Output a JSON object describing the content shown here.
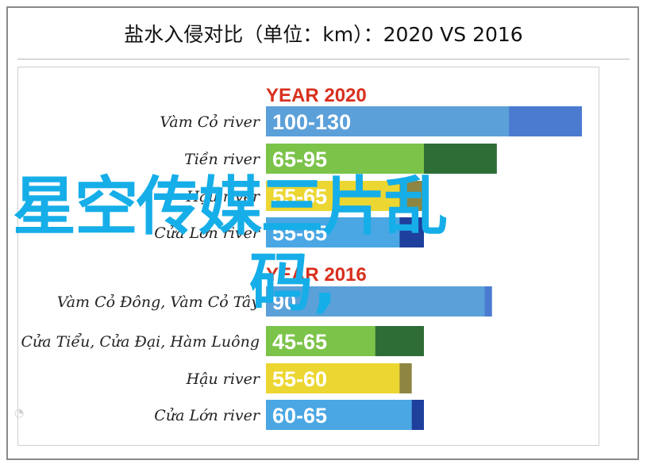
{
  "page_title": "盐水入侵对比（单位：km）：2020 VS 2016",
  "overlay_text": {
    "line1": "星空传媒三片乱",
    "line2": "码,"
  },
  "colors": {
    "blue_main": "#5ba0d9",
    "blue_cap": "#4a7bd0",
    "green_main": "#7cc34a",
    "green_cap": "#2f6d36",
    "yellow_main": "#ecd631",
    "yellow_cap": "#8e8542",
    "light_blue_main": "#4aa7e4",
    "navy_cap": "#1e3f9c",
    "section_title": "#d8301e",
    "overlay": "#16aee8"
  },
  "chart_data": {
    "type": "bar",
    "orientation": "horizontal",
    "title": "盐水入侵对比（单位：km）：2020 VS 2016",
    "xlim": [
      0,
      140
    ],
    "groups": [
      {
        "title": "YEAR 2020",
        "bars": [
          {
            "category": "Vàm Cỏ river",
            "label": "100-130",
            "min": 100,
            "max": 130,
            "color": "blue"
          },
          {
            "category": "Tiền river",
            "label": "65-95",
            "min": 65,
            "max": 95,
            "color": "green"
          },
          {
            "category": "Hậu river",
            "label": "55-65",
            "min": 55,
            "max": 65,
            "color": "yellow"
          },
          {
            "category": "Cửa Lớn river",
            "label": "55-65",
            "min": 55,
            "max": 65,
            "color": "light_blue"
          }
        ]
      },
      {
        "title": "YEAR 2016",
        "bars": [
          {
            "category": "Vàm Cỏ Đông, Vàm Cỏ Tây",
            "label": "90",
            "min": 90,
            "max": 93,
            "color": "blue"
          },
          {
            "category": "Cửa Tiểu, Cửa Đại, Hàm Luông",
            "label": "45-65",
            "min": 45,
            "max": 65,
            "color": "green"
          },
          {
            "category": "Hậu river",
            "label": "55-60",
            "min": 55,
            "max": 60,
            "color": "yellow"
          },
          {
            "category": "Cửa Lớn river",
            "label": "60-65",
            "min": 60,
            "max": 65,
            "color": "light_blue"
          }
        ]
      }
    ]
  }
}
